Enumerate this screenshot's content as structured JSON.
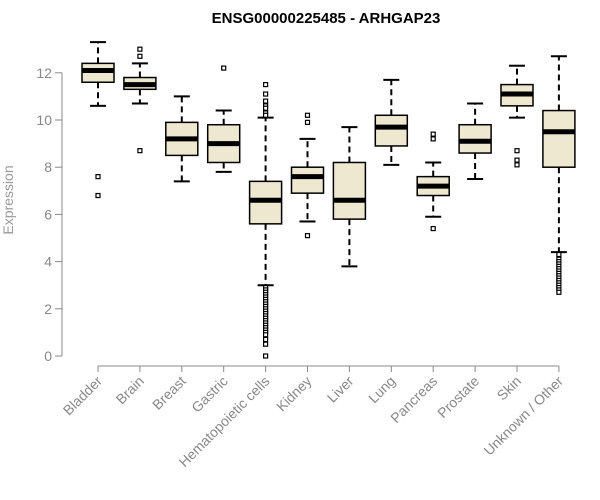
{
  "chart_data": {
    "type": "boxplot",
    "title": "ENSG00000225485 - ARHGAP23",
    "xlabel": "",
    "ylabel": "Expression",
    "ylim": [
      0,
      13.2
    ],
    "yticks": [
      0,
      2,
      4,
      6,
      8,
      10,
      12
    ],
    "colors": {
      "box_fill": "#EFE8D0",
      "line": "#000000",
      "axis": "#888888"
    },
    "categories": [
      "Bladder",
      "Brain",
      "Breast",
      "Gastric",
      "Hematopoietic cells",
      "Kidney",
      "Liver",
      "Lung",
      "Pancreas",
      "Prostate",
      "Skin",
      "Unknown / Other"
    ],
    "boxes": [
      {
        "name": "Bladder",
        "whisker_low": 10.6,
        "q1": 11.6,
        "median": 12.1,
        "q3": 12.4,
        "whisker_high": 13.3,
        "outliers": [
          7.6,
          6.8
        ]
      },
      {
        "name": "Brain",
        "whisker_low": 10.7,
        "q1": 11.3,
        "median": 11.5,
        "q3": 11.8,
        "whisker_high": 12.4,
        "outliers": [
          13.0,
          12.7,
          8.7
        ]
      },
      {
        "name": "Breast",
        "whisker_low": 7.4,
        "q1": 8.5,
        "median": 9.2,
        "q3": 9.9,
        "whisker_high": 11.0,
        "outliers": []
      },
      {
        "name": "Gastric",
        "whisker_low": 7.8,
        "q1": 8.2,
        "median": 9.0,
        "q3": 9.8,
        "whisker_high": 10.4,
        "outliers": [
          12.2
        ]
      },
      {
        "name": "Hematopoietic cells",
        "whisker_low": 3.0,
        "q1": 5.6,
        "median": 6.6,
        "q3": 7.4,
        "whisker_high": 10.1,
        "outliers": [
          11.5,
          11.1,
          10.8,
          10.6,
          10.5,
          10.3,
          10.2,
          2.9,
          2.8,
          2.7,
          2.6,
          2.5,
          2.4,
          2.3,
          2.2,
          2.1,
          2.0,
          1.9,
          1.8,
          1.7,
          1.6,
          1.5,
          1.4,
          1.3,
          1.2,
          1.1,
          1.0,
          0.9,
          0.7,
          0.5,
          0.0
        ]
      },
      {
        "name": "Kidney",
        "whisker_low": 5.7,
        "q1": 6.9,
        "median": 7.6,
        "q3": 8.0,
        "whisker_high": 9.2,
        "outliers": [
          10.2,
          9.9,
          5.1
        ]
      },
      {
        "name": "Liver",
        "whisker_low": 3.8,
        "q1": 5.8,
        "median": 6.6,
        "q3": 8.2,
        "whisker_high": 9.7,
        "outliers": []
      },
      {
        "name": "Lung",
        "whisker_low": 8.1,
        "q1": 8.9,
        "median": 9.7,
        "q3": 10.2,
        "whisker_high": 11.7,
        "outliers": []
      },
      {
        "name": "Pancreas",
        "whisker_low": 5.9,
        "q1": 6.8,
        "median": 7.2,
        "q3": 7.6,
        "whisker_high": 8.2,
        "outliers": [
          9.4,
          9.2,
          5.4
        ]
      },
      {
        "name": "Prostate",
        "whisker_low": 7.5,
        "q1": 8.6,
        "median": 9.1,
        "q3": 9.8,
        "whisker_high": 10.7,
        "outliers": []
      },
      {
        "name": "Skin",
        "whisker_low": 10.1,
        "q1": 10.6,
        "median": 11.1,
        "q3": 11.5,
        "whisker_high": 12.3,
        "outliers": [
          8.7,
          8.3,
          8.1
        ]
      },
      {
        "name": "Unknown / Other",
        "whisker_low": 4.4,
        "q1": 8.0,
        "median": 9.5,
        "q3": 10.4,
        "whisker_high": 12.7,
        "outliers": [
          4.3,
          4.1,
          4.0,
          3.9,
          3.8,
          3.7,
          3.6,
          3.5,
          3.4,
          3.3,
          3.2,
          3.1,
          3.0,
          2.9,
          2.8,
          2.7
        ]
      }
    ]
  }
}
